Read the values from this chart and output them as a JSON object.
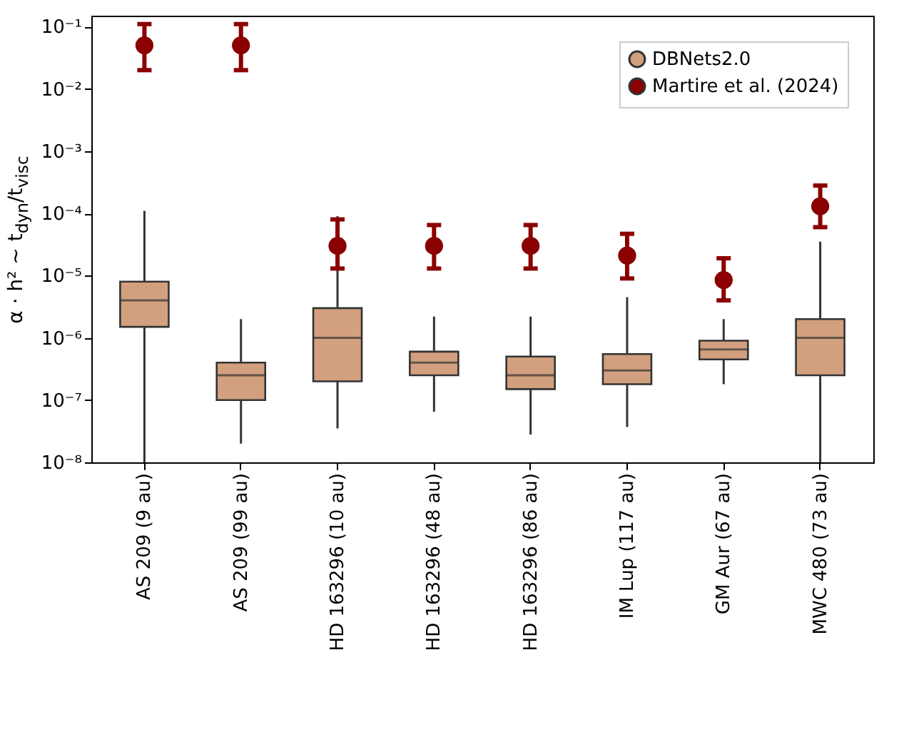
{
  "chart_data": {
    "type": "box",
    "ylabel": "α · h² ∼ t$_{dyn}$/t$_{visc}$",
    "categories": [
      "AS 209 (9 au)",
      "AS 209 (99 au)",
      "HD 163296 (10 au)",
      "HD 163296 (48 au)",
      "HD 163296 (86 au)",
      "IM Lup (117 au)",
      "GM Aur (67 au)",
      "MWC 480 (73 au)"
    ],
    "log": true,
    "ylim": [
      1e-08,
      0.15
    ],
    "yticks": [
      {
        "value": 1e-08,
        "label": "10⁻⁸"
      },
      {
        "value": 1e-07,
        "label": "10⁻⁷"
      },
      {
        "value": 1e-06,
        "label": "10⁻⁶"
      },
      {
        "value": 1e-05,
        "label": "10⁻⁵"
      },
      {
        "value": 0.0001,
        "label": "10⁻⁴"
      },
      {
        "value": 0.001,
        "label": "10⁻³"
      },
      {
        "value": 0.01,
        "label": "10⁻²"
      },
      {
        "value": 0.1,
        "label": "10⁻¹"
      }
    ],
    "grid": false,
    "legend": "top right",
    "series": [
      {
        "name": "DBNets2.0",
        "color": "#d2a07e",
        "boxes": [
          {
            "low": 1e-08,
            "q1": 1.5e-06,
            "median": 4e-06,
            "q3": 8e-06,
            "high": 0.00011
          },
          {
            "low": 2e-08,
            "q1": 1e-07,
            "median": 2.5e-07,
            "q3": 4e-07,
            "high": 2e-06
          },
          {
            "low": 3.5e-08,
            "q1": 2e-07,
            "median": 1e-06,
            "q3": 3e-06,
            "high": 9e-05
          },
          {
            "low": 6.5e-08,
            "q1": 2.5e-07,
            "median": 4e-07,
            "q3": 6e-07,
            "high": 2.2e-06
          },
          {
            "low": 2.8e-08,
            "q1": 1.5e-07,
            "median": 2.5e-07,
            "q3": 5e-07,
            "high": 2.2e-06
          },
          {
            "low": 3.7e-08,
            "q1": 1.8e-07,
            "median": 3e-07,
            "q3": 5.5e-07,
            "high": 4.5e-06
          },
          {
            "low": 1.8e-07,
            "q1": 4.5e-07,
            "median": 6.5e-07,
            "q3": 9e-07,
            "high": 2e-06
          },
          {
            "low": 1e-08,
            "q1": 2.5e-07,
            "median": 1e-06,
            "q3": 2e-06,
            "high": 3.5e-05
          }
        ]
      },
      {
        "name": "Martire et al. (2024)",
        "type": "scatter",
        "color": "#8b0000",
        "marker": "circle",
        "x": [
          "AS 209 (9 au)",
          "AS 209 (99 au)",
          "HD 163296 (10 au)",
          "HD 163296 (48 au)",
          "HD 163296 (86 au)",
          "IM Lup (117 au)",
          "GM Aur (67 au)",
          "MWC 480 (73 au)"
        ],
        "values": [
          0.05,
          0.05,
          3e-05,
          3e-05,
          3e-05,
          2.1e-05,
          8.5e-06,
          0.00013
        ],
        "errors": [
          [
            0.02,
            0.11
          ],
          [
            0.02,
            0.11
          ],
          [
            1.3e-05,
            8e-05
          ],
          [
            1.3e-05,
            6.5e-05
          ],
          [
            1.3e-05,
            6.5e-05
          ],
          [
            9e-06,
            4.7e-05
          ],
          [
            4e-06,
            1.9e-05
          ],
          [
            6e-05,
            0.00028
          ]
        ]
      }
    ]
  }
}
